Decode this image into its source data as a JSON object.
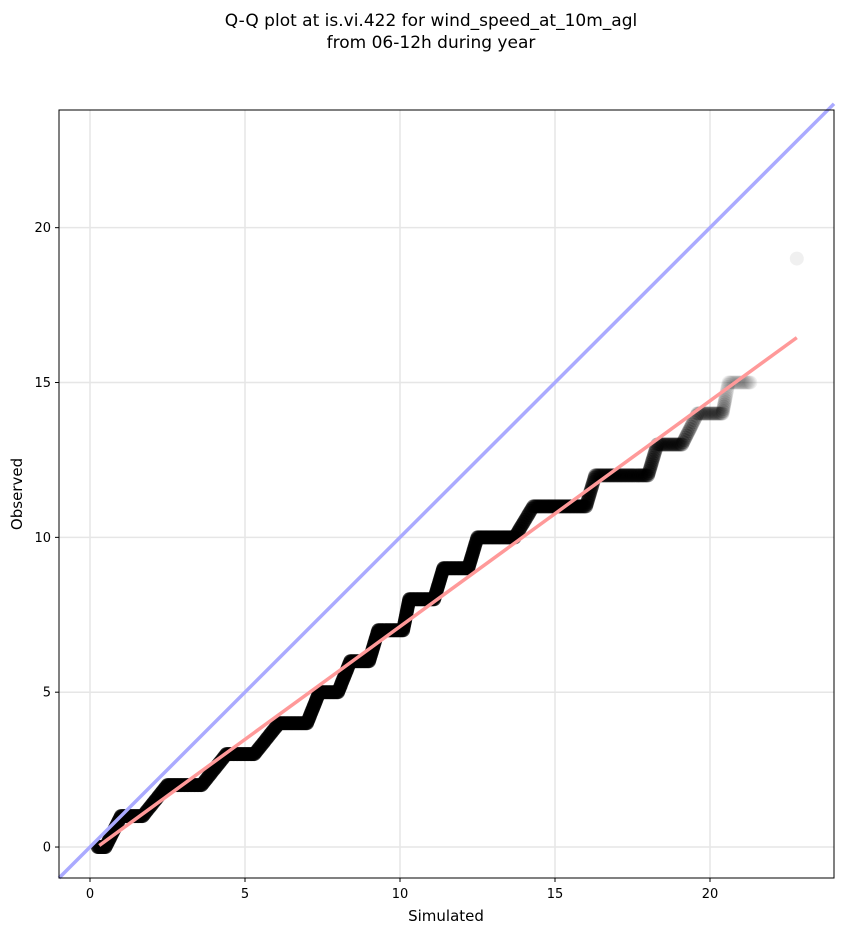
{
  "chart_data": {
    "type": "scatter",
    "title_line1": "Q-Q plot at is.vi.422 for wind_speed_at_10m_agl",
    "title_line2": "from 06-12h during year",
    "xlabel": "Simulated",
    "ylabel": "Observed",
    "xlim": [
      -1.0,
      24.0
    ],
    "ylim": [
      -1.0,
      23.8
    ],
    "xticks": [
      0,
      5,
      10,
      15,
      20
    ],
    "yticks": [
      0,
      5,
      10,
      15,
      20
    ],
    "grid": true,
    "identity_line": {
      "color": "#aaaaff",
      "x": [
        -1.0,
        24.0
      ],
      "y": [
        -1.0,
        24.0
      ]
    },
    "fit_line": {
      "color": "#ff9999",
      "x": [
        0.3,
        22.8
      ],
      "y": [
        0.05,
        16.45
      ]
    },
    "series": [
      {
        "marker_color": "#000000",
        "steps": [
          {
            "y": 0,
            "x_start": 0.25,
            "x_end": 0.5
          },
          {
            "y": 1,
            "x_start": 1.0,
            "x_end": 1.7
          },
          {
            "y": 2,
            "x_start": 2.5,
            "x_end": 3.6
          },
          {
            "y": 3,
            "x_start": 4.4,
            "x_end": 5.3
          },
          {
            "y": 4,
            "x_start": 6.1,
            "x_end": 7.0
          },
          {
            "y": 5,
            "x_start": 7.4,
            "x_end": 8.0
          },
          {
            "y": 6,
            "x_start": 8.4,
            "x_end": 9.0
          },
          {
            "y": 7,
            "x_start": 9.3,
            "x_end": 10.1
          },
          {
            "y": 8,
            "x_start": 10.3,
            "x_end": 11.1
          },
          {
            "y": 9,
            "x_start": 11.4,
            "x_end": 12.2
          },
          {
            "y": 10,
            "x_start": 12.5,
            "x_end": 13.7
          },
          {
            "y": 11,
            "x_start": 14.3,
            "x_end": 16.0
          },
          {
            "y": 12,
            "x_start": 16.3,
            "x_end": 18.0
          },
          {
            "y": 13,
            "x_start": 18.3,
            "x_end": 19.1
          },
          {
            "y": 14,
            "x_start": 19.6,
            "x_end": 20.4
          },
          {
            "y": 15,
            "x_start": 20.6,
            "x_end": 21.3
          }
        ],
        "outlier": {
          "x": 22.8,
          "y": 19.0
        }
      }
    ]
  }
}
